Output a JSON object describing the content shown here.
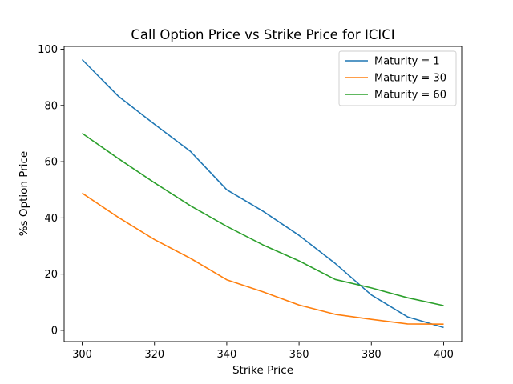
{
  "chart_data": {
    "type": "line",
    "title": "Call Option Price vs Strike Price for ICICI",
    "xlabel": "Strike Price",
    "ylabel": "%s Option Price",
    "x": [
      300,
      310,
      320,
      330,
      340,
      350,
      360,
      370,
      380,
      390,
      400
    ],
    "xlim": [
      295,
      405
    ],
    "ylim": [
      -4,
      101
    ],
    "xticks": [
      300,
      320,
      340,
      360,
      380,
      400
    ],
    "yticks": [
      0,
      20,
      40,
      60,
      80,
      100
    ],
    "grid": false,
    "legend_position": "top-right",
    "series": [
      {
        "name": "Maturity = 1",
        "color": "#1f77b4",
        "values": [
          96.3,
          83.3,
          73.3,
          63.6,
          50.0,
          42.4,
          33.8,
          23.8,
          12.6,
          4.8,
          1.0
        ]
      },
      {
        "name": "Maturity = 30",
        "color": "#ff7f0e",
        "values": [
          48.8,
          40.2,
          32.3,
          25.6,
          18.0,
          13.7,
          9.0,
          5.7,
          3.9,
          2.3,
          2.2
        ]
      },
      {
        "name": "Maturity = 60",
        "color": "#2ca02c",
        "values": [
          70.1,
          61.1,
          52.5,
          44.3,
          37.0,
          30.4,
          24.7,
          18.1,
          15.1,
          11.6,
          8.8
        ]
      }
    ]
  }
}
